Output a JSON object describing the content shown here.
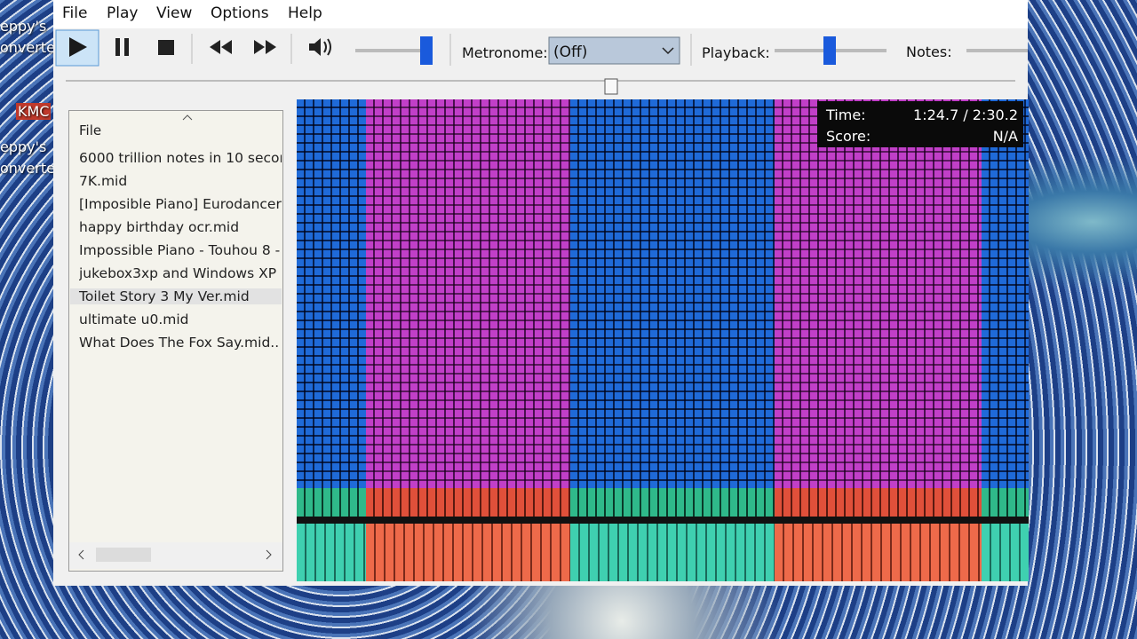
{
  "desktop_icons": [
    "eppy's",
    "onverte",
    "KMC",
    "eppy's",
    "onverte"
  ],
  "menu": [
    "File",
    "Play",
    "View",
    "Options",
    "Help"
  ],
  "toolbar": {
    "metronome_label": "Metronome:",
    "metronome_value": "(Off)",
    "playback_label": "Playback:",
    "notes_label": "Notes:"
  },
  "file_list": {
    "header": "File",
    "items": [
      "6000 trillion notes in 10 secon.",
      "7K.mid",
      "[Imposible Piano] Eurodancer.",
      "happy birthday ocr.mid",
      "Impossible Piano - Touhou  8 -",
      "jukebox3xp and Windows XP .",
      "Toilet Story 3 My Ver.mid",
      "ultimate u0.mid",
      "What Does The Fox Say.mid.."
    ],
    "selected": 6
  },
  "overlay": {
    "time_label": "Time:",
    "time_value": "1:24.7 / 2:30.2",
    "score_label": "Score:",
    "score_value": "N/A"
  }
}
